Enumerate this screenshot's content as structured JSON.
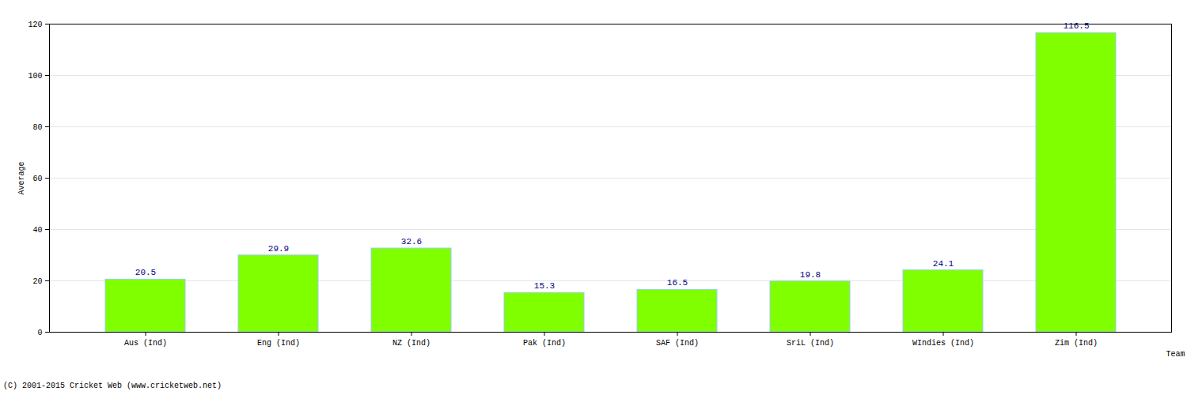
{
  "chart_data": {
    "type": "bar",
    "caption": "(C) 2001-2015 Cricket Web (www.cricketweb.net)",
    "x_label": "Team",
    "y_label": "Average",
    "categories": [
      "Aus (Ind)",
      "Eng (Ind)",
      "NZ (Ind)",
      "Pak (Ind)",
      "SAF (Ind)",
      "SriL (Ind)",
      "WIndies (Ind)",
      "Zim (Ind)"
    ],
    "values": [
      20.5,
      29.9,
      32.6,
      15.3,
      16.5,
      19.8,
      24.1,
      116.5
    ],
    "color": "#80ff00",
    "ylim": [
      0,
      120
    ],
    "yticks": [
      0,
      20,
      40,
      60,
      80,
      100,
      120
    ],
    "grid": true,
    "data_labels": true
  }
}
